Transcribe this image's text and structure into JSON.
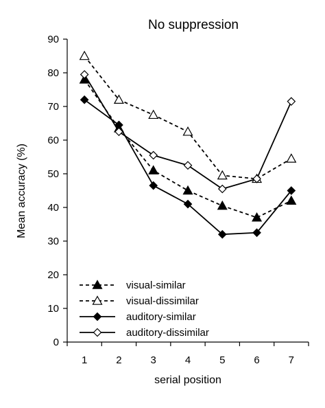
{
  "chart_data": {
    "type": "line",
    "title": "No suppression",
    "xlabel": "serial position",
    "ylabel": "Mean accuracy (%)",
    "x": [
      1,
      2,
      3,
      4,
      5,
      6,
      7
    ],
    "xlim": [
      0.5,
      7.5
    ],
    "ylim": [
      0,
      90
    ],
    "yticks": [
      0,
      10,
      20,
      30,
      40,
      50,
      60,
      70,
      80,
      90
    ],
    "grid": false,
    "legend_position": "bottom-left",
    "series": [
      {
        "name": "visual-similar",
        "line": "dashed",
        "marker": "triangle",
        "filled": true,
        "values": [
          78,
          63.5,
          51,
          45,
          40.5,
          37,
          42
        ]
      },
      {
        "name": "visual-dissimilar",
        "line": "dashed",
        "marker": "triangle",
        "filled": false,
        "values": [
          85,
          72,
          67.5,
          62.5,
          49.5,
          48.5,
          54.5
        ]
      },
      {
        "name": "auditory-similar",
        "line": "solid",
        "marker": "diamond",
        "filled": true,
        "values": [
          72,
          64.5,
          46.5,
          41,
          32,
          32.5,
          45
        ]
      },
      {
        "name": "auditory-dissimilar",
        "line": "solid",
        "marker": "diamond",
        "filled": false,
        "values": [
          79.5,
          62.5,
          55.5,
          52.5,
          45.5,
          48.5,
          71.5
        ]
      }
    ]
  }
}
